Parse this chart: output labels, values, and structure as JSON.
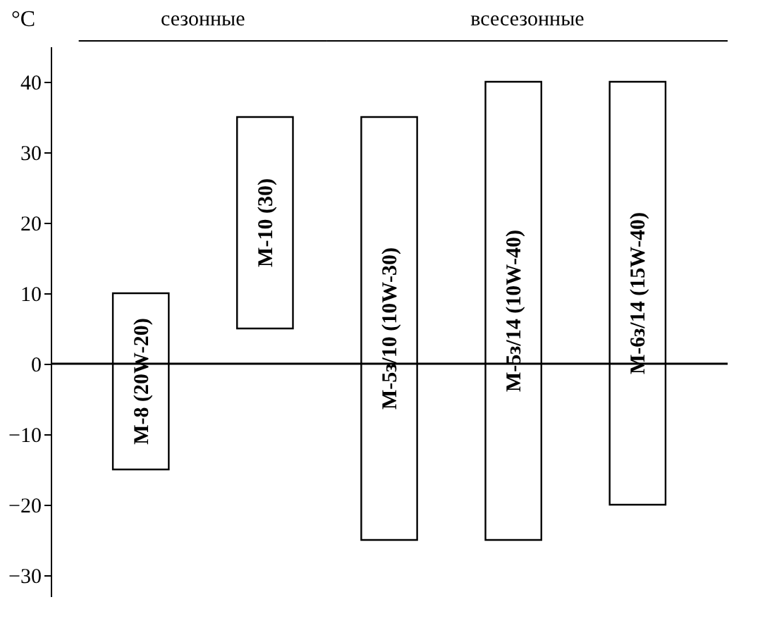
{
  "chart_data": {
    "type": "bar",
    "ylabel": "°C",
    "categories": [
      "M-8 (20W-20)",
      "M-10 (30)",
      "M-5з/10 (10W-30)",
      "M-5з/14 (10W-40)",
      "M-6з/14 (15W-40)"
    ],
    "base": [
      -15,
      5,
      -25,
      -25,
      -20
    ],
    "values": [
      25,
      30,
      60,
      65,
      60
    ],
    "color": "#ffffff",
    "ylim": [
      -33,
      45
    ],
    "yticks": [
      -30,
      -20,
      -10,
      0,
      10,
      20,
      30,
      40
    ],
    "ref_lines": [
      {
        "axis": "y",
        "value": 0
      }
    ],
    "annotations": [
      "сезонные",
      "всесезонные"
    ],
    "grid": false
  }
}
